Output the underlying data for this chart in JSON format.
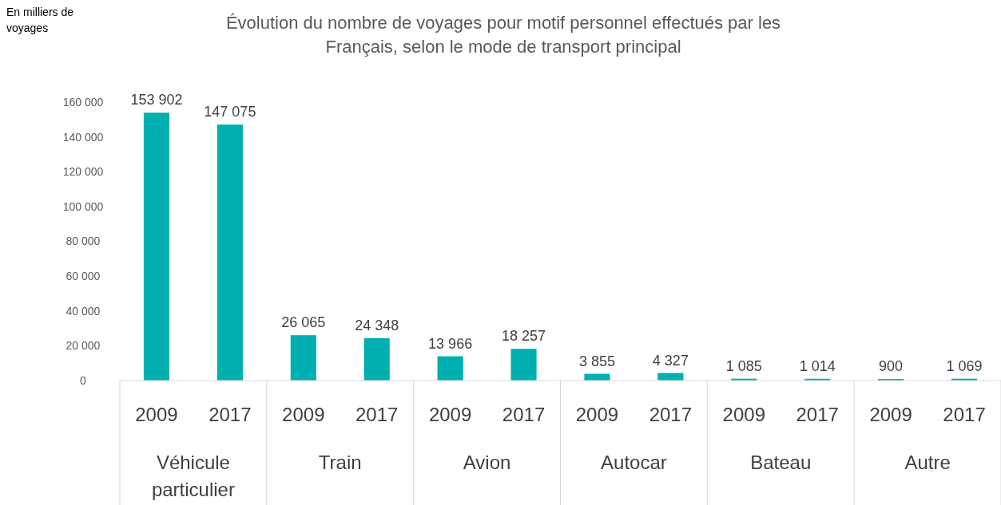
{
  "chart_data": {
    "type": "bar",
    "title": "Évolution du nombre de voyages pour motif personnel effectués par les Français, selon le mode de transport principal",
    "categories": [
      "2009",
      "2017",
      "2009",
      "2017",
      "2009",
      "2017",
      "2009",
      "2017",
      "2009",
      "2017",
      "2009",
      "2017"
    ],
    "values": [
      153902,
      147075,
      26065,
      24348,
      13966,
      18257,
      3855,
      4327,
      1085,
      1014,
      900,
      1069
    ],
    "value_labels": [
      "153 902",
      "147 075",
      "26 065",
      "24 348",
      "13 966",
      "18 257",
      "3 855",
      "4 327",
      "1 085",
      "1 014",
      "900",
      "1 069"
    ],
    "color": "#00b0b0",
    "ylim": [
      0,
      160000
    ],
    "yticks": [
      {
        "value": 0,
        "label": "0"
      },
      {
        "value": 20000,
        "label": "20 000"
      },
      {
        "value": 40000,
        "label": "40 000"
      },
      {
        "value": 60000,
        "label": "60 000"
      },
      {
        "value": 80000,
        "label": "80 000"
      },
      {
        "value": 100000,
        "label": "100 000"
      },
      {
        "value": 120000,
        "label": "120 000"
      },
      {
        "value": 140000,
        "label": "140 000"
      },
      {
        "value": 160000,
        "label": "160 000"
      }
    ],
    "annotations": [
      "En milliers de voyages",
      "Véhicule particulier",
      "Train",
      "Avion",
      "Autocar",
      "Bateau",
      "Autre"
    ],
    "grid": false
  }
}
